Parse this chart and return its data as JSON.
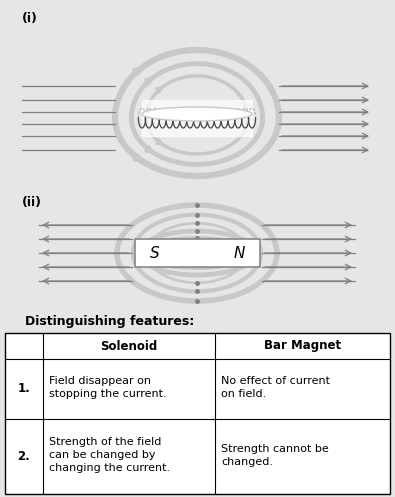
{
  "bg_color": "#e6e6e6",
  "white": "#ffffff",
  "lgray": "#c8c8c8",
  "dgray": "#808080",
  "mgray": "#a0a0a0",
  "coil_color": "#606060",
  "label_i": "(i)",
  "label_ii": "(ii)",
  "title": "Distinguishing features:",
  "table_headers": [
    "",
    "Solenoid",
    "Bar Magnet"
  ],
  "table_rows": [
    [
      "1.",
      "Field disappear on\nstopping the current.",
      "No effect of current\non field."
    ],
    [
      "2.",
      "Strength of the field\ncan be changed by\nchanging the current.",
      "Strength cannot be\nchanged."
    ]
  ],
  "s_label": "S",
  "n_label": "N",
  "fig_w": 3.95,
  "fig_h": 4.97,
  "dpi": 100
}
